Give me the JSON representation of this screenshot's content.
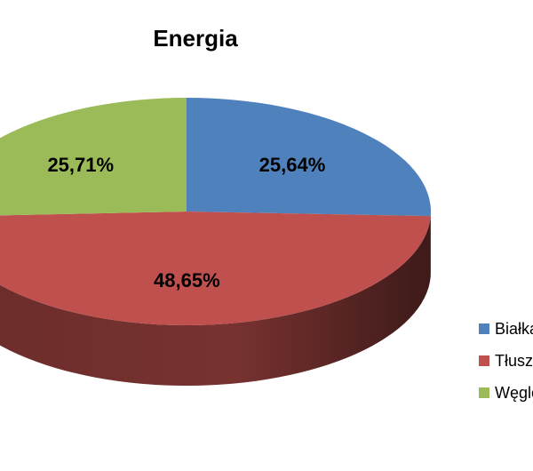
{
  "chart_data": {
    "type": "pie",
    "title": "Energia",
    "legend_position": "right",
    "series": [
      {
        "name": "Białka",
        "value": 25.64,
        "label": "25,64%",
        "color": "#4F81BD"
      },
      {
        "name": "Tłuszcze",
        "value": 48.65,
        "label": "48,65%",
        "color": "#C0504D"
      },
      {
        "name": "Węglowodany",
        "value": 25.71,
        "label": "25,71%",
        "color": "#9BBB59"
      }
    ]
  }
}
